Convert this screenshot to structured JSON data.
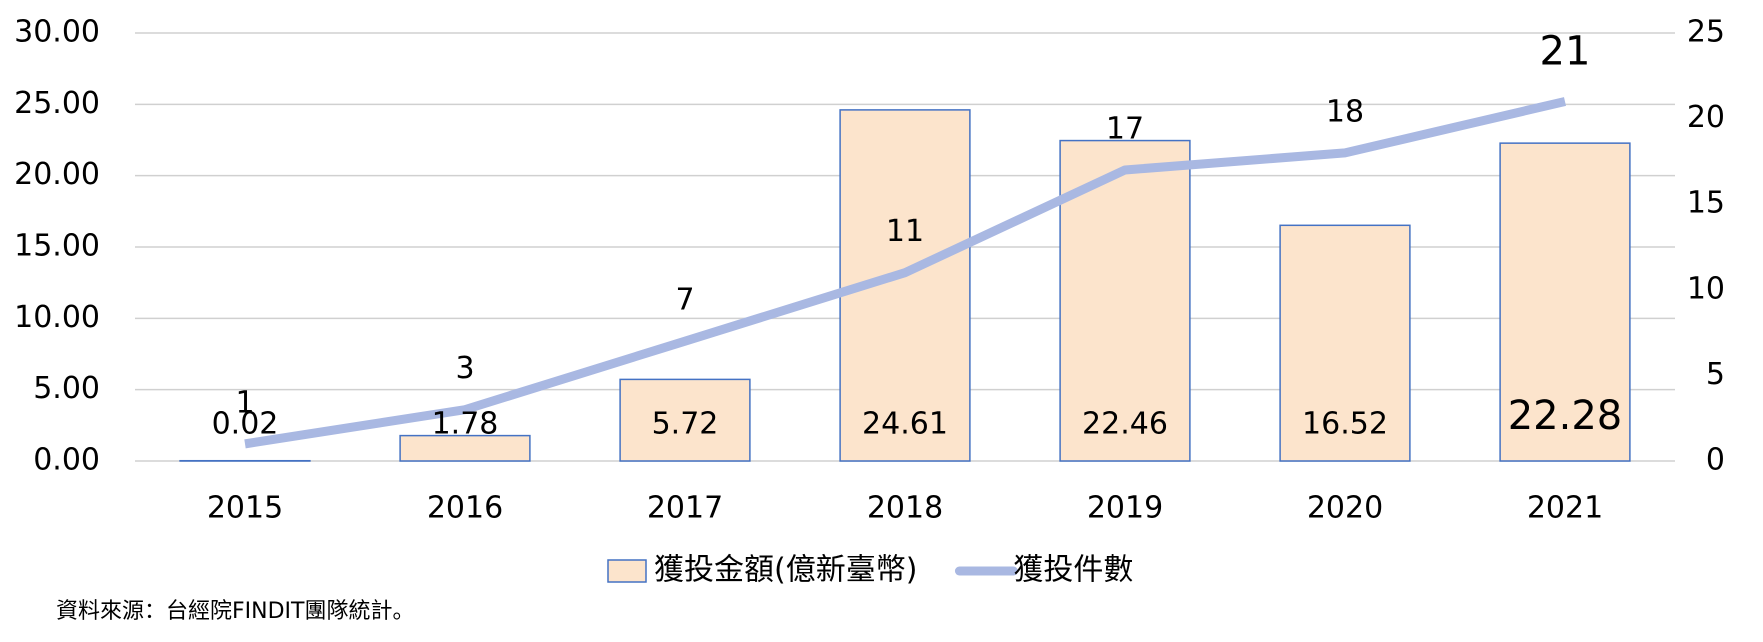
{
  "chart_data": {
    "type": "bar-line",
    "categories": [
      "2015",
      "2016",
      "2017",
      "2018",
      "2019",
      "2020",
      "2021"
    ],
    "series": [
      {
        "name": "獲投金額(億新臺幣)",
        "type": "bar",
        "color": "#fce4cc",
        "edge_color": "#4472c4",
        "values": [
          0.02,
          1.78,
          5.72,
          24.61,
          22.46,
          16.52,
          22.28
        ]
      },
      {
        "name": "獲投件數",
        "type": "line",
        "axis": "y2",
        "color": "#a9b8e2",
        "values": [
          1,
          3,
          7,
          11,
          17,
          18,
          21
        ]
      }
    ],
    "ylim": [
      0,
      30
    ],
    "yticks": [
      {
        "value": 0,
        "label": "0.00"
      },
      {
        "value": 5,
        "label": "5.00"
      },
      {
        "value": 10,
        "label": "10.00"
      },
      {
        "value": 15,
        "label": "15.00"
      },
      {
        "value": 20,
        "label": "20.00"
      },
      {
        "value": 25,
        "label": "25.00"
      },
      {
        "value": 30,
        "label": "30.00"
      }
    ],
    "y2lim": [
      0,
      25
    ],
    "y2ticks": [
      0,
      5,
      10,
      15,
      20,
      25
    ],
    "grid": true,
    "legend": "bottom",
    "source": "資料來源：台經院FINDIT團隊統計。"
  }
}
